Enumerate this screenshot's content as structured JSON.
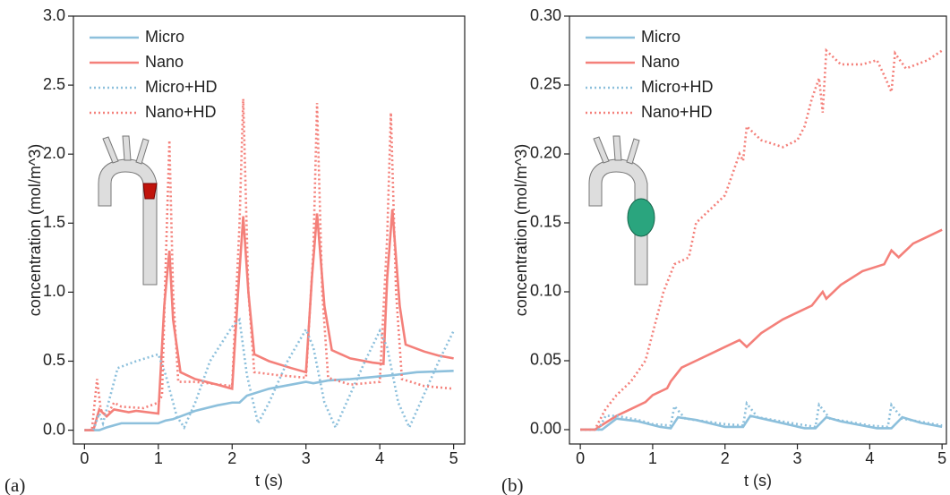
{
  "chart_data": [
    {
      "type": "line",
      "panel_label": "(a)",
      "x_label": "t (s)",
      "y_label": "concentration (mol/m^3)",
      "xlim": [
        -0.15,
        5.15
      ],
      "ylim": [
        -0.1,
        3.0
      ],
      "xticks": [
        0,
        1,
        2,
        3,
        4,
        5
      ],
      "yticks": [
        {
          "value": 0,
          "label": "0.0"
        },
        0.5,
        {
          "value": 1,
          "label": "1.0"
        },
        1.5,
        {
          "value": 2,
          "label": "2.0"
        },
        2.5,
        {
          "value": 3,
          "label": "3.0"
        }
      ],
      "legend": "upper left",
      "series": [
        {
          "name": "Micro",
          "color": "#8dc0dc",
          "style": "solid",
          "x": [
            0,
            0.2,
            0.3,
            0.5,
            1.0,
            1.1,
            1.2,
            1.3,
            1.5,
            1.8,
            2.0,
            2.1,
            2.2,
            2.5,
            2.8,
            3.0,
            3.1,
            3.3,
            3.6,
            4.0,
            4.2,
            4.5,
            5.0
          ],
          "values": [
            0,
            0,
            0.02,
            0.05,
            0.05,
            0.07,
            0.08,
            0.1,
            0.14,
            0.18,
            0.2,
            0.2,
            0.25,
            0.3,
            0.33,
            0.35,
            0.34,
            0.36,
            0.37,
            0.39,
            0.4,
            0.42,
            0.43
          ]
        },
        {
          "name": "Nano",
          "color": "#f4807a",
          "style": "solid",
          "x": [
            0,
            0.12,
            0.2,
            0.3,
            0.4,
            0.6,
            0.7,
            1.0,
            1.08,
            1.15,
            1.2,
            1.3,
            1.5,
            1.8,
            2.0,
            2.08,
            2.15,
            2.22,
            2.3,
            2.5,
            2.8,
            3.0,
            3.08,
            3.15,
            3.25,
            3.35,
            3.6,
            3.9,
            4.05,
            4.1,
            4.17,
            4.27,
            4.35,
            4.6,
            4.8,
            5.0
          ],
          "values": [
            0,
            0,
            0.15,
            0.1,
            0.15,
            0.13,
            0.14,
            0.12,
            0.9,
            1.3,
            0.8,
            0.42,
            0.37,
            0.33,
            0.3,
            1.0,
            1.55,
            1.0,
            0.55,
            0.5,
            0.45,
            0.42,
            1.1,
            1.57,
            0.9,
            0.58,
            0.52,
            0.49,
            0.48,
            1.1,
            1.6,
            0.9,
            0.62,
            0.57,
            0.54,
            0.52
          ]
        },
        {
          "name": "Micro+HD",
          "color": "#8dc0dc",
          "style": "dotted",
          "x": [
            0,
            0.12,
            0.2,
            0.25,
            0.35,
            0.45,
            0.7,
            1.0,
            1.1,
            1.25,
            1.35,
            1.5,
            1.7,
            2.0,
            2.1,
            2.2,
            2.35,
            2.5,
            2.75,
            3.0,
            3.1,
            3.25,
            3.4,
            3.55,
            3.8,
            4.0,
            4.1,
            4.25,
            4.4,
            4.55,
            4.8,
            5.0
          ],
          "values": [
            0,
            0,
            0.12,
            0.05,
            0.25,
            0.45,
            0.5,
            0.55,
            0.4,
            0.1,
            0.02,
            0.2,
            0.5,
            0.75,
            0.8,
            0.4,
            0.05,
            0.2,
            0.5,
            0.73,
            0.6,
            0.2,
            0.02,
            0.2,
            0.5,
            0.72,
            0.6,
            0.2,
            0.02,
            0.2,
            0.5,
            0.72
          ]
        },
        {
          "name": "Nano+HD",
          "color": "#f4807a",
          "style": "dotted",
          "x": [
            0,
            0.1,
            0.17,
            0.22,
            0.3,
            0.4,
            0.5,
            0.8,
            1.0,
            1.05,
            1.1,
            1.15,
            1.2,
            1.27,
            1.5,
            2.0,
            2.1,
            2.15,
            2.22,
            2.3,
            2.6,
            3.0,
            3.1,
            3.15,
            3.22,
            3.3,
            3.6,
            4.0,
            4.1,
            4.15,
            4.22,
            4.3,
            4.6,
            5.0
          ],
          "values": [
            0,
            0,
            0.37,
            0.15,
            0.1,
            0.2,
            0.17,
            0.16,
            0.2,
            0.25,
            1.2,
            2.1,
            1.0,
            0.35,
            0.35,
            0.32,
            1.5,
            2.4,
            1.0,
            0.42,
            0.4,
            0.38,
            1.3,
            2.37,
            1.0,
            0.38,
            0.33,
            0.35,
            1.4,
            2.3,
            1.0,
            0.37,
            0.32,
            0.3
          ]
        }
      ]
    },
    {
      "type": "line",
      "panel_label": "(b)",
      "x_label": "t (s)",
      "y_label": "concentration (mol/m^3)",
      "xlim": [
        -0.15,
        5.06
      ],
      "ylim": [
        -0.0104,
        0.3
      ],
      "xticks": [
        0,
        1,
        2,
        3,
        4,
        5
      ],
      "yticks": [
        {
          "value": 0,
          "label": "0.00"
        },
        0.05,
        {
          "value": 0.1,
          "label": "0.10"
        },
        0.15,
        {
          "value": 0.2,
          "label": "0.20"
        },
        0.25,
        {
          "value": 0.3,
          "label": "0.30"
        }
      ],
      "legend": "upper left",
      "series": [
        {
          "name": "Micro",
          "color": "#8dc0dc",
          "style": "solid",
          "x": [
            0,
            0.3,
            0.5,
            0.8,
            1.1,
            1.25,
            1.35,
            1.6,
            2.0,
            2.25,
            2.35,
            2.6,
            3.1,
            3.25,
            3.4,
            3.6,
            4.1,
            4.3,
            4.45,
            4.7,
            5.0
          ],
          "values": [
            0,
            0,
            0.008,
            0.006,
            0.002,
            0.001,
            0.009,
            0.007,
            0.002,
            0.002,
            0.01,
            0.007,
            0.001,
            0.001,
            0.009,
            0.006,
            0.001,
            0.001,
            0.009,
            0.005,
            0.002
          ]
        },
        {
          "name": "Nano",
          "color": "#f4807a",
          "style": "solid",
          "x": [
            0,
            0.2,
            0.35,
            0.5,
            0.7,
            0.9,
            1.0,
            1.2,
            1.25,
            1.4,
            1.6,
            1.8,
            2.0,
            2.2,
            2.3,
            2.5,
            2.8,
            3.0,
            3.2,
            3.35,
            3.4,
            3.6,
            3.9,
            4.2,
            4.3,
            4.4,
            4.6,
            4.8,
            5.0
          ],
          "values": [
            0,
            0,
            0.005,
            0.01,
            0.015,
            0.02,
            0.025,
            0.03,
            0.035,
            0.045,
            0.05,
            0.055,
            0.06,
            0.065,
            0.06,
            0.07,
            0.08,
            0.085,
            0.09,
            0.1,
            0.095,
            0.105,
            0.115,
            0.12,
            0.13,
            0.125,
            0.135,
            0.14,
            0.145
          ]
        },
        {
          "name": "Micro+HD",
          "color": "#8dc0dc",
          "style": "dotted",
          "x": [
            0,
            0.25,
            0.35,
            0.5,
            0.8,
            1.0,
            1.25,
            1.3,
            1.45,
            2.0,
            2.25,
            2.3,
            2.45,
            3.0,
            3.25,
            3.3,
            3.45,
            4.0,
            4.25,
            4.3,
            4.45,
            5.0
          ],
          "values": [
            0,
            0,
            0.01,
            0.01,
            0.007,
            0.004,
            0.003,
            0.017,
            0.008,
            0.004,
            0.003,
            0.019,
            0.009,
            0.004,
            0.002,
            0.018,
            0.008,
            0.003,
            0.002,
            0.018,
            0.008,
            0.003
          ]
        },
        {
          "name": "Nano+HD",
          "color": "#f4807a",
          "style": "dotted",
          "x": [
            0,
            0.2,
            0.35,
            0.5,
            0.7,
            0.9,
            1.0,
            1.15,
            1.3,
            1.5,
            1.6,
            1.8,
            2.0,
            2.1,
            2.2,
            2.25,
            2.3,
            2.5,
            2.8,
            3.0,
            3.1,
            3.2,
            3.3,
            3.35,
            3.4,
            3.6,
            3.9,
            4.1,
            4.2,
            4.3,
            4.35,
            4.5,
            4.8,
            5.0
          ],
          "values": [
            0,
            0,
            0.015,
            0.025,
            0.035,
            0.05,
            0.07,
            0.1,
            0.12,
            0.125,
            0.15,
            0.16,
            0.17,
            0.185,
            0.2,
            0.195,
            0.22,
            0.21,
            0.205,
            0.21,
            0.22,
            0.24,
            0.255,
            0.23,
            0.275,
            0.265,
            0.265,
            0.268,
            0.257,
            0.245,
            0.273,
            0.262,
            0.268,
            0.275
          ]
        }
      ]
    }
  ]
}
